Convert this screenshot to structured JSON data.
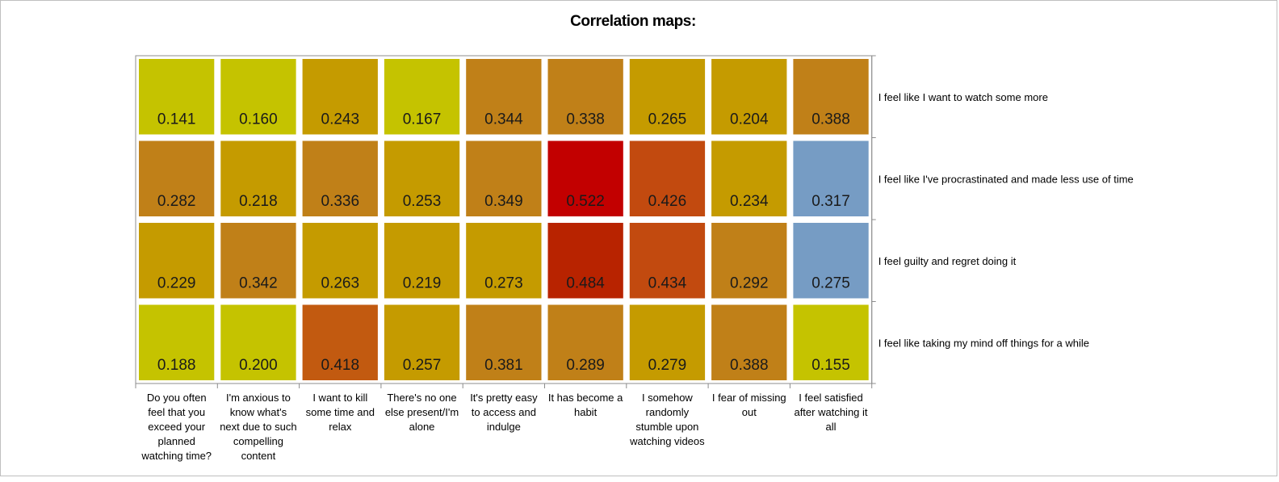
{
  "chart_data": {
    "type": "heatmap",
    "title": "Correlation maps:",
    "columns": [
      "Do you often feel that you exceed your planned watching time?",
      "I'm anxious to know what's next due to such compelling content",
      "I want to kill some time and relax",
      "There's no one else present/I'm alone",
      "It's pretty easy to access and indulge",
      "It has become a habit",
      "I somehow randomly stumble upon watching videos",
      "I fear of missing out",
      "I feel satisfied after watching it all"
    ],
    "column_label_lines": [
      [
        "Do you often",
        "feel that you",
        "exceed your",
        "planned",
        "watching time?"
      ],
      [
        "I'm anxious to",
        "know what's",
        "next due to such",
        "compelling",
        "content"
      ],
      [
        "I want to kill",
        "some time and",
        "relax"
      ],
      [
        "There's no one",
        "else present/I'm",
        "alone"
      ],
      [
        "It's pretty easy",
        "to access and",
        "indulge"
      ],
      [
        "It has become a",
        "habit"
      ],
      [
        "I somehow",
        "randomly",
        "stumble upon",
        "watching videos"
      ],
      [
        "I fear of missing",
        "out"
      ],
      [
        "I feel satisfied",
        "after watching it",
        "all"
      ]
    ],
    "rows": [
      "I feel like I want to watch some more",
      "I feel like I've procrastinated and made less use of time",
      "I feel guilty and regret doing it",
      "I feel like taking my mind off things for a while"
    ],
    "values": [
      [
        "0.141",
        "0.160",
        "0.243",
        "0.167",
        "0.344",
        "0.338",
        "0.265",
        "0.204",
        "0.388"
      ],
      [
        "0.282",
        "0.218",
        "0.336",
        "0.253",
        "0.349",
        "0.522",
        "0.426",
        "0.234",
        "0.317"
      ],
      [
        "0.229",
        "0.342",
        "0.263",
        "0.219",
        "0.273",
        "0.484",
        "0.434",
        "0.292",
        "0.275"
      ],
      [
        "0.188",
        "0.200",
        "0.418",
        "0.257",
        "0.381",
        "0.289",
        "0.279",
        "0.388",
        "0.155"
      ]
    ],
    "colors": [
      [
        "#c5c300",
        "#c5c300",
        "#c59b00",
        "#c5c300",
        "#c08018",
        "#c08018",
        "#c59b00",
        "#c59b00",
        "#c08018"
      ],
      [
        "#c08018",
        "#c59b00",
        "#c08018",
        "#c59b00",
        "#c08018",
        "#c20000",
        "#c24a0f",
        "#c59b00",
        "#769cc4"
      ],
      [
        "#c59b00",
        "#c08018",
        "#c59b00",
        "#c59b00",
        "#c59b00",
        "#b82300",
        "#c24a0f",
        "#c08018",
        "#769cc4"
      ],
      [
        "#c5c300",
        "#c5c300",
        "#c25a10",
        "#c59b00",
        "#c08018",
        "#c08018",
        "#c59b00",
        "#c08018",
        "#c5c300"
      ]
    ],
    "grid": false,
    "legend": "none"
  }
}
